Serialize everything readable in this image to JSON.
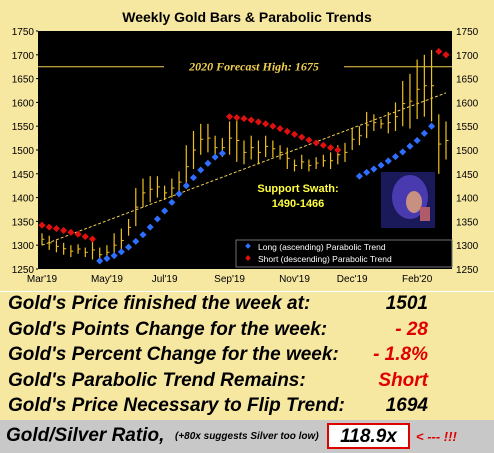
{
  "chart_data": {
    "type": "candlestick",
    "title": "Weekly Gold Bars & Parabolic Trends",
    "ylim": [
      1250,
      1750
    ],
    "yticks": [
      1250,
      1300,
      1350,
      1400,
      1450,
      1500,
      1550,
      1600,
      1650,
      1700,
      1750
    ],
    "xtick_labels": [
      "Mar'19",
      "May'19",
      "Jul'19",
      "Sep'19",
      "Nov'19",
      "Dec'19",
      "Feb'20"
    ],
    "xtick_weeks": [
      0,
      9,
      17,
      26,
      35,
      43,
      52
    ],
    "forecast": {
      "label": "2020 Forecast High:  1675",
      "value": 1675
    },
    "annotation": {
      "line1": "Support Swath:",
      "line2": "1490-1466"
    },
    "legend": {
      "placement": "bottom-right",
      "long_label": "Long (ascending) Parabolic Trend",
      "short_label": "Short (descending) Parabolic Trend"
    },
    "colors": {
      "bars": "#f0c020",
      "long": "#2f6fff",
      "short": "#e01010",
      "forecast": "#f0d050",
      "trend": "#f0d050",
      "background": "#000000",
      "panel": "#f6e7a1"
    },
    "bars": [
      [
        1300,
        1325
      ],
      [
        1290,
        1320
      ],
      [
        1285,
        1310
      ],
      [
        1280,
        1305
      ],
      [
        1275,
        1300
      ],
      [
        1282,
        1302
      ],
      [
        1275,
        1295
      ],
      [
        1270,
        1310
      ],
      [
        1265,
        1295
      ],
      [
        1270,
        1300
      ],
      [
        1275,
        1325
      ],
      [
        1285,
        1335
      ],
      [
        1320,
        1355
      ],
      [
        1340,
        1420
      ],
      [
        1380,
        1440
      ],
      [
        1390,
        1445
      ],
      [
        1400,
        1445
      ],
      [
        1395,
        1425
      ],
      [
        1400,
        1440
      ],
      [
        1410,
        1455
      ],
      [
        1420,
        1510
      ],
      [
        1460,
        1540
      ],
      [
        1490,
        1555
      ],
      [
        1495,
        1555
      ],
      [
        1480,
        1530
      ],
      [
        1485,
        1525
      ],
      [
        1490,
        1560
      ],
      [
        1475,
        1565
      ],
      [
        1470,
        1520
      ],
      [
        1480,
        1530
      ],
      [
        1470,
        1520
      ],
      [
        1485,
        1530
      ],
      [
        1485,
        1520
      ],
      [
        1480,
        1510
      ],
      [
        1460,
        1505
      ],
      [
        1455,
        1480
      ],
      [
        1460,
        1490
      ],
      [
        1455,
        1480
      ],
      [
        1460,
        1485
      ],
      [
        1465,
        1490
      ],
      [
        1460,
        1495
      ],
      [
        1470,
        1510
      ],
      [
        1475,
        1515
      ],
      [
        1500,
        1545
      ],
      [
        1510,
        1550
      ],
      [
        1525,
        1580
      ],
      [
        1540,
        1575
      ],
      [
        1545,
        1565
      ],
      [
        1535,
        1580
      ],
      [
        1540,
        1600
      ],
      [
        1550,
        1645
      ],
      [
        1545,
        1660
      ],
      [
        1565,
        1690
      ],
      [
        1570,
        1700
      ],
      [
        1560,
        1710
      ],
      [
        1450,
        1575
      ],
      [
        1480,
        1560
      ]
    ],
    "long_trend": [
      [
        8,
        1267
      ],
      [
        9,
        1272
      ],
      [
        10,
        1278
      ],
      [
        11,
        1286
      ],
      [
        12,
        1296
      ],
      [
        13,
        1308
      ],
      [
        14,
        1322
      ],
      [
        15,
        1338
      ],
      [
        16,
        1355
      ],
      [
        17,
        1372
      ],
      [
        18,
        1390
      ],
      [
        19,
        1408
      ],
      [
        20,
        1425
      ],
      [
        21,
        1442
      ],
      [
        22,
        1458
      ],
      [
        23,
        1472
      ],
      [
        24,
        1485
      ],
      [
        25,
        1493
      ],
      [
        44,
        1445
      ],
      [
        45,
        1453
      ],
      [
        46,
        1460
      ],
      [
        47,
        1468
      ],
      [
        48,
        1477
      ],
      [
        49,
        1486
      ],
      [
        50,
        1496
      ],
      [
        51,
        1508
      ],
      [
        52,
        1520
      ],
      [
        53,
        1535
      ],
      [
        54,
        1550
      ]
    ],
    "short_trend": [
      [
        0,
        1342
      ],
      [
        1,
        1338
      ],
      [
        2,
        1335
      ],
      [
        3,
        1331
      ],
      [
        4,
        1327
      ],
      [
        5,
        1323
      ],
      [
        6,
        1318
      ],
      [
        7,
        1313
      ],
      [
        26,
        1570
      ],
      [
        27,
        1568
      ],
      [
        28,
        1566
      ],
      [
        29,
        1563
      ],
      [
        30,
        1559
      ],
      [
        31,
        1555
      ],
      [
        32,
        1550
      ],
      [
        33,
        1545
      ],
      [
        34,
        1539
      ],
      [
        35,
        1533
      ],
      [
        36,
        1527
      ],
      [
        37,
        1521
      ],
      [
        38,
        1515
      ],
      [
        39,
        1510
      ],
      [
        40,
        1505
      ],
      [
        41,
        1500
      ],
      [
        55,
        1707
      ],
      [
        56,
        1700
      ]
    ],
    "trendline": [
      [
        0,
        1300
      ],
      [
        56,
        1620
      ]
    ]
  },
  "stats": [
    {
      "label": "Gold's Price finished the week at:",
      "value": "1501",
      "color": "#000000"
    },
    {
      "label": "Gold's Points Change for the week:",
      "value": "- 28",
      "color": "#e00000"
    },
    {
      "label": "Gold's Percent Change for the week:",
      "value": "- 1.8%",
      "color": "#e00000"
    },
    {
      "label": "Gold's Parabolic Trend Remains:",
      "value": "Short",
      "color": "#e00000"
    },
    {
      "label": "Gold's Price Necessary to Flip Trend:",
      "value": "1694",
      "color": "#000000"
    }
  ],
  "ratio": {
    "label": "Gold/Silver Ratio,",
    "note": "(+80x suggests Silver too low)",
    "value": "118.9x",
    "arrow": "< --- !!!"
  }
}
